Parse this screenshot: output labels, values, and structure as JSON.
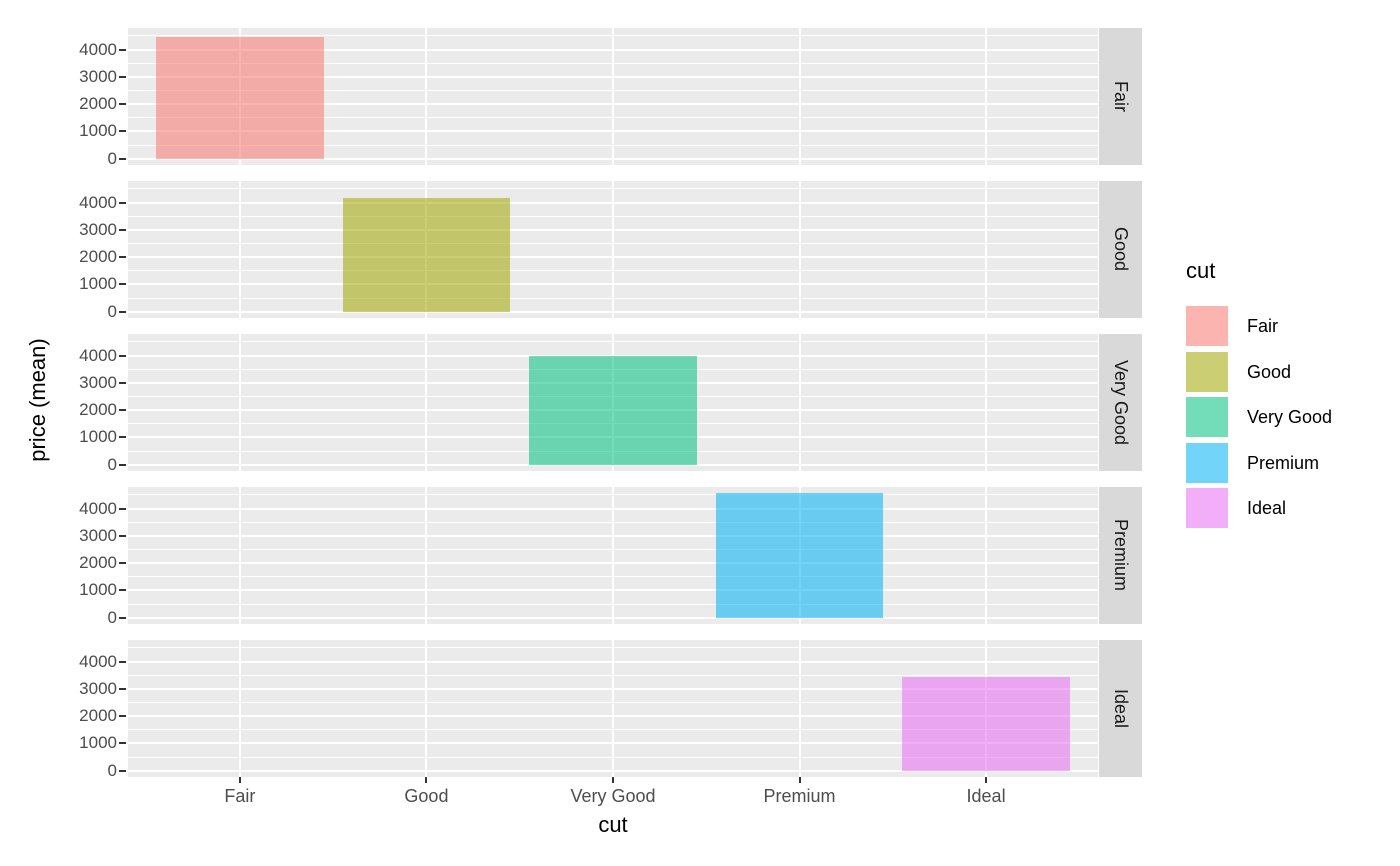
{
  "chart_data": {
    "type": "bar",
    "faceted": true,
    "facet_variable": "cut",
    "xlabel": "cut",
    "ylabel": "price (mean)",
    "categories": [
      "Fair",
      "Good",
      "Very Good",
      "Premium",
      "Ideal"
    ],
    "yticks": [
      0,
      1000,
      2000,
      3000,
      4000
    ],
    "minor_gridlines": [
      500,
      1500,
      2500,
      3500,
      4500
    ],
    "ylim": [
      -228,
      4788
    ],
    "grid": true,
    "facets": [
      {
        "strip_label": "Fair",
        "category": "Fair",
        "value": 4450,
        "color": "#F8766D"
      },
      {
        "strip_label": "Good",
        "category": "Good",
        "value": 4150,
        "color": "#A3A500"
      },
      {
        "strip_label": "Very Good",
        "category": "Very Good",
        "value": 3970,
        "color": "#00BF7D"
      },
      {
        "strip_label": "Premium",
        "category": "Premium",
        "value": 4560,
        "color": "#00B0F6"
      },
      {
        "strip_label": "Ideal",
        "category": "Ideal",
        "value": 3450,
        "color": "#E76BF3"
      }
    ],
    "legend": {
      "title": "cut",
      "position": "right",
      "entries": [
        {
          "label": "Fair",
          "color": "#F8766D"
        },
        {
          "label": "Good",
          "color": "#A3A500"
        },
        {
          "label": "Very Good",
          "color": "#00BF7D"
        },
        {
          "label": "Premium",
          "color": "#00B0F6"
        },
        {
          "label": "Ideal",
          "color": "#E76BF3"
        }
      ]
    },
    "fill_alpha": 0.55,
    "theme": {
      "panel_bg": "#EBEBEB",
      "grid_color": "#FFFFFF",
      "strip_bg": "#D9D9D9",
      "strip_text": "#1A1A1A",
      "axis_text": "#4D4D4D",
      "title_text": "#000000",
      "tick_mark": "#333333"
    }
  }
}
